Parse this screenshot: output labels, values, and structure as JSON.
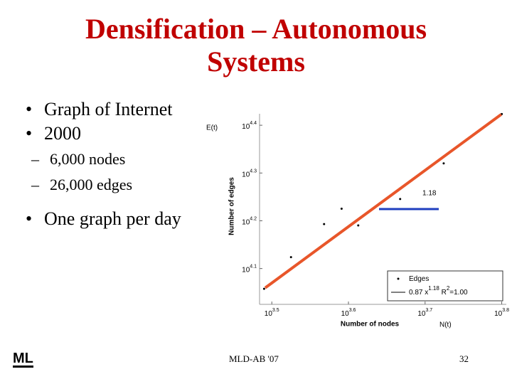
{
  "slide": {
    "title": "Densification – Autonomous Systems",
    "bullets": [
      {
        "text": "Graph of Internet",
        "sub": []
      },
      {
        "text": "2000",
        "sub": [
          "6,000 nodes",
          "26,000 edges"
        ]
      },
      {
        "text": "One graph per day",
        "sub": []
      }
    ],
    "footer": "MLD-AB '07",
    "page": "32",
    "logo": "ML"
  },
  "chart_data": {
    "type": "scatter",
    "log_scale": true,
    "x_label": "Number of nodes",
    "y_label": "Number of edges",
    "annotations": {
      "y_name": "E(t)",
      "x_name": "N(t)",
      "slope": "1.18"
    },
    "xlim": [
      3048,
      6397
    ],
    "ylim": [
      10593,
      26546
    ],
    "xticks": [
      {
        "value": 3162.28,
        "label": "10^3.5"
      },
      {
        "value": 3981.07,
        "label": "10^3.6"
      },
      {
        "value": 5011.87,
        "label": "10^3.7"
      },
      {
        "value": 6309.57,
        "label": "10^3.8"
      }
    ],
    "yticks": [
      {
        "value": 12589.25,
        "label": "10^4.1"
      },
      {
        "value": 15848.93,
        "label": "10^4.2"
      },
      {
        "value": 19952.62,
        "label": "10^4.3"
      },
      {
        "value": 25118.86,
        "label": "10^4.4"
      }
    ],
    "legend": "lower right",
    "series": [
      {
        "name": "Edges",
        "color": "#000000",
        "x": [
          3090,
          3162,
          3311,
          3467,
          3631,
          3802,
          3981,
          4169,
          4365,
          4571,
          4786,
          5012,
          5248,
          5495,
          5754,
          6026,
          6310,
          3350,
          3900,
          4100,
          3700,
          4650,
          5300
        ],
        "y": [
          11420,
          11740,
          12390,
          13085,
          13815,
          14585,
          15400,
          16260,
          17170,
          18130,
          19140,
          20210,
          21340,
          22530,
          23790,
          25110,
          26510,
          13300,
          16800,
          15500,
          15600,
          17600,
          20900
        ]
      },
      {
        "name": "0.87 x^1.18  R^2=1.00",
        "color": "#e8562a",
        "line": true,
        "x": [
          3100,
          6300
        ],
        "y": [
          11470,
          26470
        ]
      }
    ]
  }
}
